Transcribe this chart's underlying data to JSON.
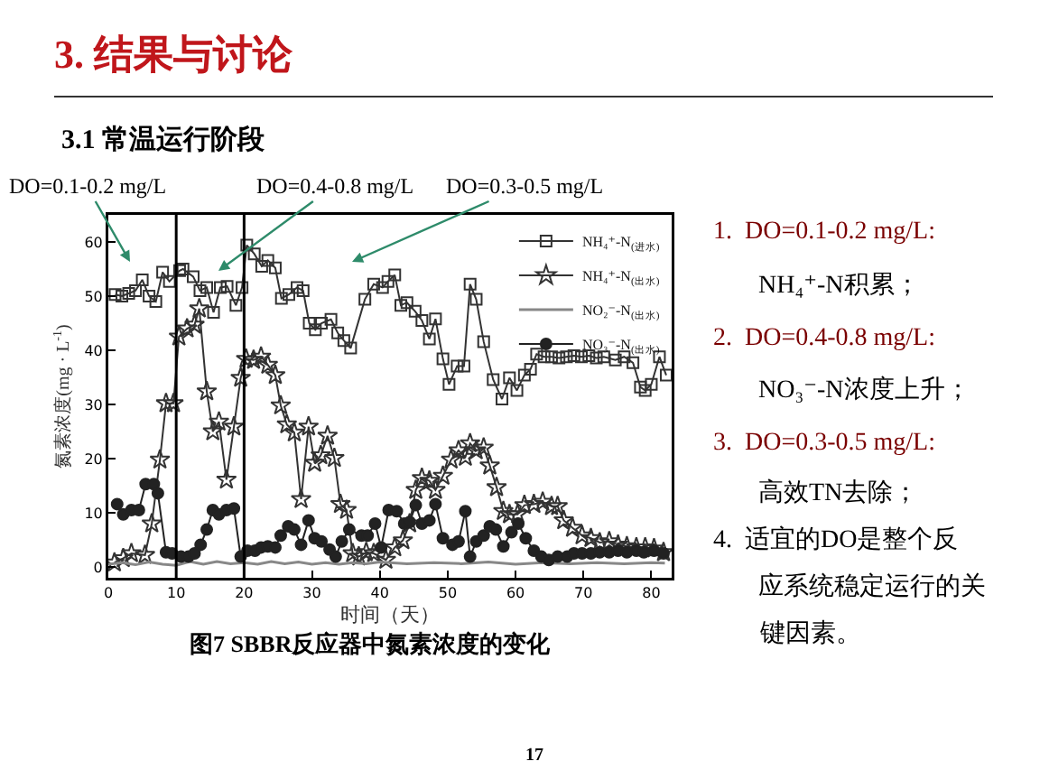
{
  "chart_data": {
    "type": "line",
    "title": "3. 结果与讨论",
    "subtitle": "3.1 常温运行阶段",
    "xlabel": "时间（天）",
    "ylabel": "氮素浓度(mg · L$^{-1}$)",
    "xlim": [
      0,
      83
    ],
    "ylim": [
      -2,
      65
    ],
    "xticks": [
      0,
      10,
      20,
      30,
      40,
      50,
      60,
      70,
      80
    ],
    "yticks": [
      0,
      10,
      20,
      30,
      40,
      50,
      60
    ],
    "grid": false,
    "legend": "top right",
    "ref_lines": [
      {
        "axis": "x",
        "value": 10,
        "color": "#000000"
      },
      {
        "axis": "x",
        "value": 20,
        "color": "#000000"
      }
    ],
    "annotations": [
      "DO=0.1-0.2 mg/L",
      "DO=0.4-0.8 mg/L",
      "DO=0.3-0.5 mg/L",
      "图7 SBBR反应器中氮素浓度的变化",
      "1.  DO=0.1-0.2 mg/L:",
      "NH₄⁺-N积累；",
      "2.  DO=0.4-0.8 mg/L:",
      "NO₃⁻-N浓度上升；",
      "3.  DO=0.3-0.5 mg/L:",
      "高效TN去除；",
      "4.  适宜的DO是整个反",
      "应系统稳定运行的关",
      "键因素。",
      "17"
    ],
    "series": [
      {
        "name": "NH₄⁺-N$_{(进水)}$",
        "color": "#333333",
        "marker": "square",
        "x": [
          1,
          2,
          3,
          4,
          5,
          6,
          7,
          8,
          9,
          10.5,
          11,
          12.5,
          13.5,
          14.5,
          15.5,
          16.5,
          17.5,
          18.8,
          19.7,
          20.4,
          21.5,
          22.6,
          23.5,
          24.6,
          25.5,
          26.6,
          27.8,
          28.7,
          29.6,
          30.5,
          31.4,
          32.8,
          33.8,
          34.7,
          35.7,
          37.8,
          39.1,
          40.4,
          41.2,
          42.2,
          43.1,
          44,
          45.2,
          46.2,
          47.3,
          48.2,
          49.3,
          50.2,
          51.4,
          52.4,
          53.3,
          54.2,
          55.3,
          56.7,
          58,
          59.1,
          60.2,
          61.3,
          62.2,
          63.1,
          64.2,
          65.3,
          66.4,
          67.5,
          68.6,
          69.7,
          70.8,
          71.9,
          73,
          74.7,
          76,
          77.3,
          78.4,
          79.1,
          80,
          81.2,
          82.2
        ],
        "values": [
          50.3,
          50,
          50.5,
          51,
          53,
          50,
          49,
          54.4,
          52.7,
          54.7,
          55,
          53.6,
          51,
          51.6,
          47,
          51.6,
          51.8,
          48.3,
          51.6,
          59.4,
          57.8,
          55.5,
          56.6,
          55.2,
          49.6,
          50.3,
          51.6,
          51,
          45,
          43.8,
          45,
          45.7,
          43.2,
          41.8,
          40.4,
          49.4,
          52.2,
          51.6,
          52.7,
          53.9,
          48.3,
          48.8,
          47.2,
          45.5,
          42.1,
          45.8,
          38.4,
          33.7,
          37.1,
          37.1,
          52.2,
          49.4,
          41.6,
          34.6,
          31,
          34.9,
          32.6,
          35.4,
          36.5,
          39.3,
          38.8,
          38.8,
          38.6,
          38.8,
          39,
          38.8,
          39,
          38.6,
          38.8,
          38.2,
          38.8,
          37.7,
          33.2,
          32.6,
          33.7,
          38.8,
          35.4
        ]
      },
      {
        "name": "NH₄⁺-N$_{(出水)}$",
        "color": "#333333",
        "marker": "star",
        "x": [
          0.9,
          2.2,
          3.4,
          5.4,
          6.4,
          7.6,
          8.5,
          9.6,
          10.4,
          11.6,
          12.7,
          13.4,
          14.5,
          15.4,
          16.3,
          17.4,
          18.5,
          19.5,
          20.3,
          21.4,
          22.5,
          23.5,
          24.6,
          25.4,
          26.3,
          27.4,
          28.4,
          29.5,
          30.4,
          31.3,
          32.3,
          33.3,
          34.2,
          35.1,
          36,
          36.9,
          38,
          39.1,
          40.9,
          42.2,
          43.4,
          44.4,
          45.3,
          46.2,
          47.3,
          48.2,
          49.3,
          50.5,
          51.6,
          52.6,
          53.3,
          54.2,
          55.3,
          56.2,
          57.2,
          58.2,
          59.1,
          60.3,
          61.3,
          62.7,
          64,
          65.3,
          66.2,
          67.1,
          68.4,
          69.8,
          71.1,
          72.4,
          73.8,
          75.1,
          76.4,
          77.8,
          79.1,
          80.4,
          81.8
        ],
        "values": [
          0.8,
          1.6,
          2.5,
          2.2,
          8,
          19.8,
          30.2,
          30.2,
          42.5,
          44,
          44.7,
          47.7,
          32.4,
          25,
          26.8,
          16.1,
          25.9,
          34.9,
          38.4,
          38.2,
          38.8,
          37.3,
          35.4,
          29.8,
          26.3,
          24.8,
          12.5,
          25.9,
          19.2,
          20.6,
          24.2,
          20.1,
          11.6,
          10.5,
          2.5,
          1.9,
          2.7,
          2.5,
          1.3,
          3.6,
          4.9,
          8,
          14.2,
          16.4,
          15.9,
          14.2,
          16.8,
          19.8,
          21.5,
          20.3,
          22.8,
          21.5,
          22,
          18.7,
          14.7,
          10.3,
          9.7,
          9.7,
          11.4,
          11.6,
          12,
          11.2,
          11.2,
          8.6,
          7.2,
          5.8,
          5.3,
          4.5,
          4.7,
          4.1,
          3.8,
          3.6,
          3.6,
          3.4,
          2.7
        ]
      },
      {
        "name": "NO₂⁻-N$_{(出水)}$",
        "color": "#888888",
        "marker": "none",
        "x": [
          0,
          2,
          4,
          6,
          8,
          10,
          12,
          14,
          16,
          18,
          20,
          22,
          24,
          26,
          28,
          30,
          32,
          34,
          36,
          38,
          40,
          44,
          48,
          52,
          56,
          60,
          64,
          68,
          72,
          76,
          80,
          82
        ],
        "values": [
          0.5,
          0.8,
          0.4,
          0.9,
          0.5,
          0.3,
          1,
          0.5,
          1,
          0.6,
          0.8,
          0.5,
          1,
          0.6,
          0.9,
          0.5,
          0.8,
          0.5,
          0.8,
          0.6,
          0.9,
          0.6,
          0.8,
          0.6,
          0.9,
          0.5,
          0.8,
          0.6,
          0.8,
          0.6,
          0.8,
          0.7
        ]
      },
      {
        "name": "NO₃⁻-N$_{(出水)}$",
        "color": "#222222",
        "marker": "circle",
        "x": [
          1.3,
          2.2,
          3.4,
          4.5,
          5.5,
          6.7,
          7.3,
          8.5,
          9.4,
          10.7,
          11.8,
          12.7,
          13.6,
          14.5,
          15.4,
          16.3,
          17.4,
          18.5,
          19.5,
          20.5,
          21.6,
          22.5,
          23.5,
          24.6,
          25.4,
          26.5,
          27.4,
          28.4,
          29.5,
          30.4,
          31.4,
          32.6,
          33.5,
          34.4,
          35.5,
          37.3,
          38.2,
          39.3,
          40.2,
          41.3,
          42.5,
          43.6,
          44.4,
          45.3,
          46.2,
          47.3,
          48.2,
          49.3,
          50.7,
          51.6,
          52.6,
          53.3,
          54.2,
          55.3,
          56.2,
          57.1,
          58.2,
          59.4,
          60.4,
          61.5,
          62.7,
          63.8,
          64.9,
          66.2,
          67.6,
          68.6,
          69.8,
          71.1,
          72.4,
          73.8,
          75.1,
          76.4,
          77.8,
          78.9,
          80.4,
          81.8
        ],
        "values": [
          11.6,
          9.7,
          10.5,
          10.5,
          15.3,
          15.3,
          13.6,
          2.7,
          2.5,
          1.9,
          1.9,
          2.5,
          4.1,
          6.9,
          10.5,
          9.7,
          10.5,
          10.8,
          1.9,
          3,
          3,
          3.6,
          3.8,
          3.6,
          5.8,
          7.5,
          6.9,
          4.1,
          8.6,
          5.3,
          4.7,
          3.2,
          1.9,
          4.7,
          6.9,
          5.8,
          5.8,
          8,
          3.6,
          10.5,
          10.3,
          8,
          8.3,
          11.4,
          8,
          8.6,
          11.6,
          5.3,
          4.1,
          4.7,
          10.3,
          1.9,
          4.7,
          5.8,
          7.5,
          6.9,
          3.8,
          6.4,
          8,
          5.3,
          3,
          1.9,
          1.3,
          1.9,
          1.9,
          2.5,
          2.5,
          2.5,
          2.7,
          2.7,
          3,
          2.7,
          3,
          2.7,
          3,
          2.5
        ]
      }
    ]
  }
}
